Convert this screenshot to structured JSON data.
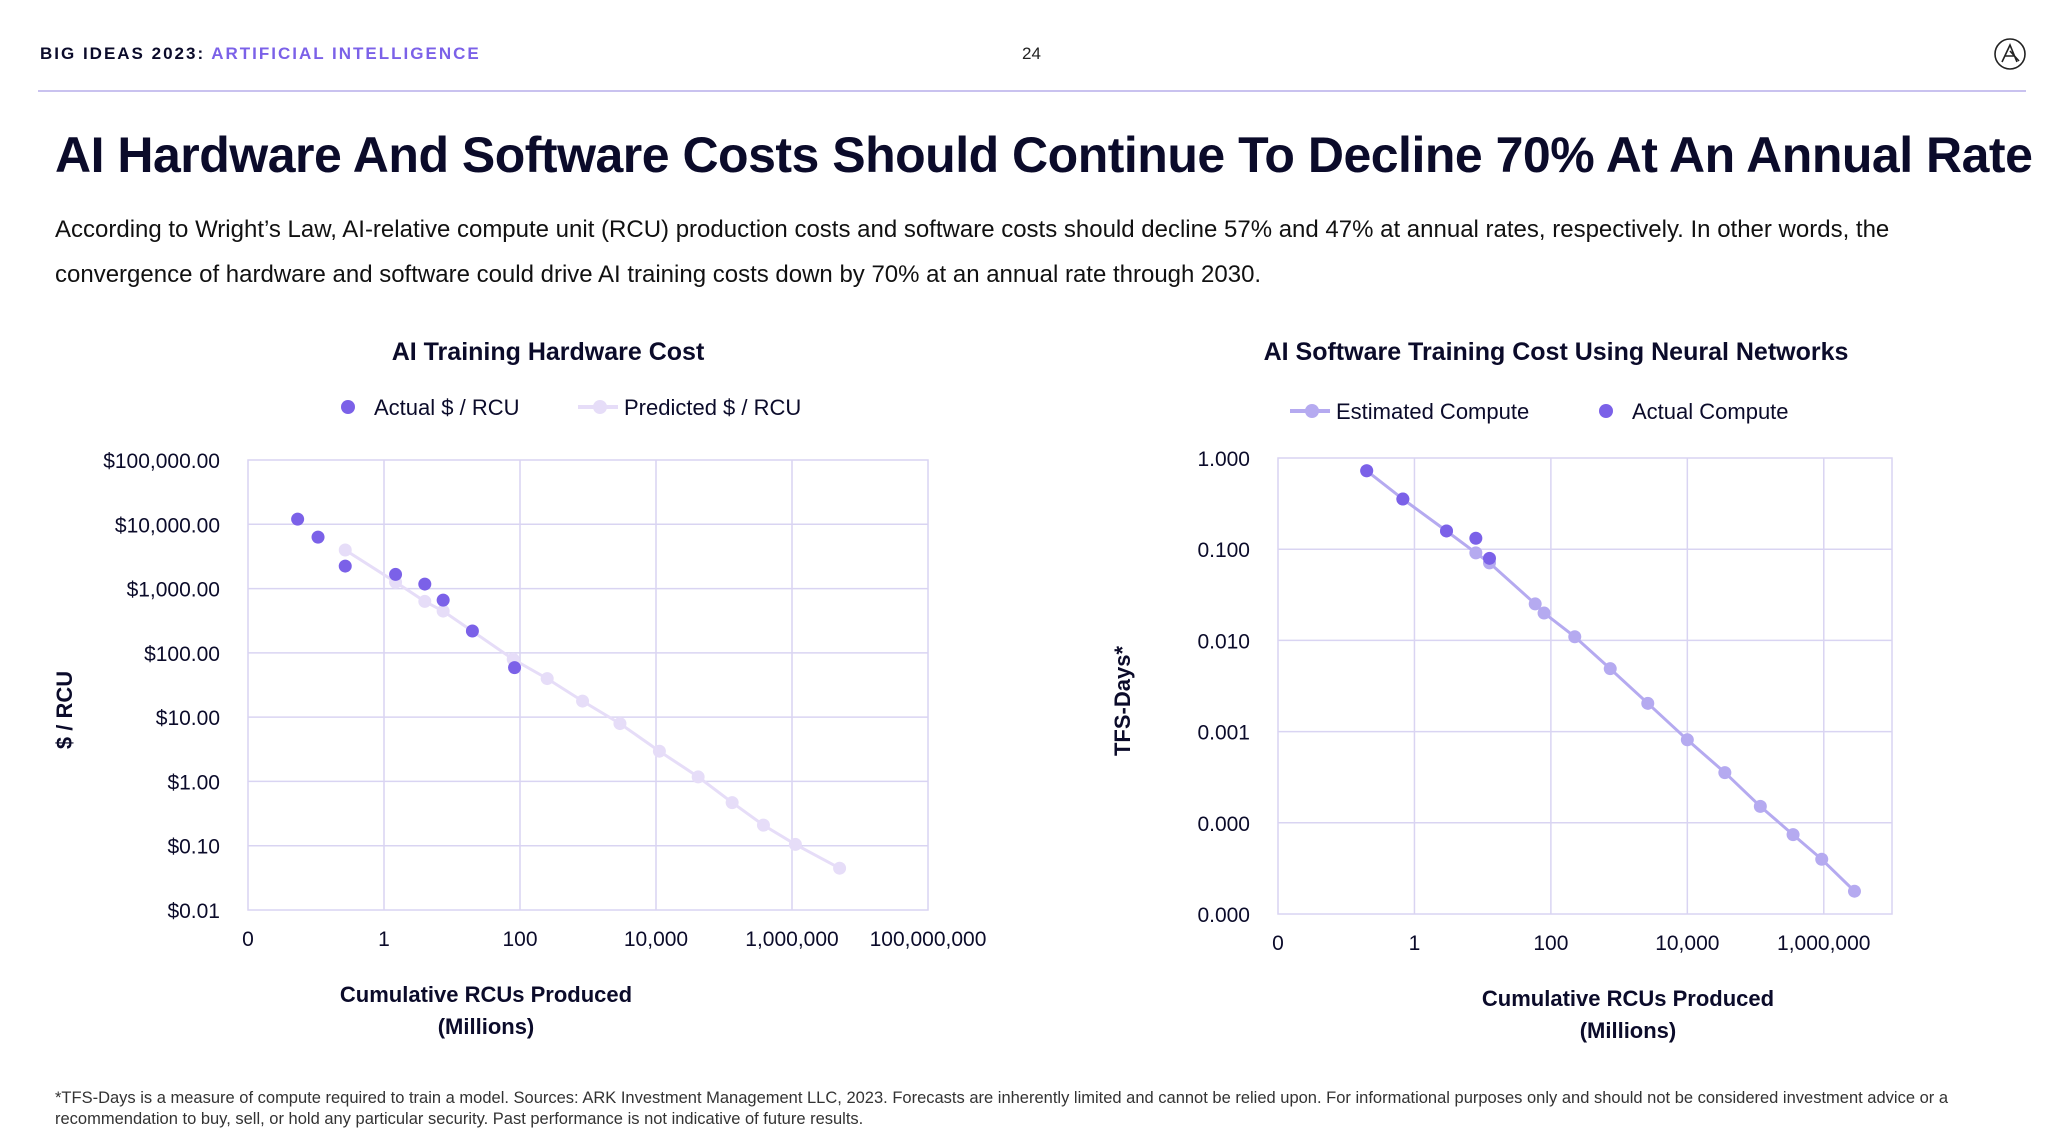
{
  "header": {
    "brand_prefix": "BIG IDEAS 2023:",
    "brand_topic": "ARTIFICIAL INTELLIGENCE",
    "page_number": "24",
    "logo_icon": "ark-logo-icon"
  },
  "title": "AI Hardware And Software Costs Should Continue To Decline 70% At An Annual Rate",
  "subtitle": "According to Wright’s Law, AI-relative compute unit (RCU) production costs and software costs should decline 57% and 47% at annual rates, respectively. In other words, the convergence of hardware and software could drive AI training costs down by 70% at an annual rate through 2030.",
  "footnote": "*TFS-Days is a measure of compute required to train a model. Sources: ARK Investment Management LLC, 2023. Forecasts are inherently limited and cannot be relied upon. For informational purposes only and should not be considered investment advice or a recommendation to buy, sell, or hold any particular security. Past performance is not indicative of future results.",
  "colors": {
    "actual": "#7b61e8",
    "predicted": "#e6ddf8",
    "estimated": "#b5aaf0",
    "grid": "#d9d4f2",
    "text": "#0b0b2a"
  },
  "chart_data": [
    {
      "type": "scatter",
      "title": "AI Training Hardware Cost",
      "xlabel": "Cumulative RCUs Produced",
      "xlabel_unit": "(Millions)",
      "ylabel": "$ / RCU",
      "x_scale": "log10",
      "y_scale": "log10",
      "xlim_log10": [
        -2,
        8
      ],
      "ylim_log10": [
        -2,
        5
      ],
      "x_tick_labels": [
        "0",
        "1",
        "100",
        "10,000",
        "1,000,000",
        "100,000,000"
      ],
      "x_tick_values_log10": [
        -2,
        0,
        2,
        4,
        6,
        8
      ],
      "y_tick_labels": [
        "$0.01",
        "$0.10",
        "$1.00",
        "$10.00",
        "$100.00",
        "$1,000.00",
        "$10,000.00",
        "$100,000.00"
      ],
      "y_tick_values_log10": [
        -2,
        -1,
        0,
        1,
        2,
        3,
        4,
        5
      ],
      "legend": [
        "Actual $ / RCU",
        "Predicted $ / RCU"
      ],
      "legend_position": "top-center",
      "grid": true,
      "series": [
        {
          "name": "Actual $ / RCU",
          "style": "markers",
          "points_log10": [
            [
              -1.27,
              4.08
            ],
            [
              -0.97,
              3.8
            ],
            [
              -0.57,
              3.35
            ],
            [
              0.17,
              3.22
            ],
            [
              0.6,
              3.07
            ],
            [
              0.87,
              2.82
            ],
            [
              1.3,
              2.34
            ],
            [
              1.92,
              1.77
            ]
          ]
        },
        {
          "name": "Predicted $ / RCU",
          "style": "line-markers",
          "points_log10": [
            [
              -0.57,
              3.6
            ],
            [
              0.17,
              3.1
            ],
            [
              0.6,
              2.8
            ],
            [
              0.87,
              2.65
            ],
            [
              1.9,
              1.9
            ],
            [
              2.4,
              1.6
            ],
            [
              2.92,
              1.25
            ],
            [
              3.47,
              0.9
            ],
            [
              4.05,
              0.47
            ],
            [
              4.62,
              0.07
            ],
            [
              5.12,
              -0.33
            ],
            [
              5.58,
              -0.68
            ],
            [
              6.05,
              -0.98
            ],
            [
              6.7,
              -1.35
            ]
          ]
        }
      ]
    },
    {
      "type": "scatter",
      "title": "AI Software Training Cost Using Neural Networks",
      "xlabel": "Cumulative RCUs Produced",
      "xlabel_unit": "(Millions)",
      "ylabel": "TFS-Days*",
      "x_scale": "log10",
      "y_scale": "log10",
      "xlim_log10": [
        -2,
        7
      ],
      "ylim_log10": [
        -5,
        0
      ],
      "x_tick_labels": [
        "0",
        "1",
        "100",
        "10,000",
        "1,000,000"
      ],
      "x_tick_values_log10": [
        -2,
        0,
        2,
        4,
        6
      ],
      "y_tick_labels": [
        "0.000",
        "0.000",
        "0.001",
        "0.010",
        "0.100",
        "1.000"
      ],
      "y_tick_values_log10": [
        -5,
        -4,
        -3,
        -2,
        -1,
        0
      ],
      "legend": [
        "Estimated Compute",
        "Actual Compute"
      ],
      "legend_position": "top-center",
      "grid": true,
      "series": [
        {
          "name": "Estimated Compute",
          "style": "line-markers",
          "points_log10": [
            [
              -0.7,
              -0.14
            ],
            [
              -0.17,
              -0.45
            ],
            [
              0.47,
              -0.8
            ],
            [
              0.9,
              -1.04
            ],
            [
              1.1,
              -1.15
            ],
            [
              1.77,
              -1.6
            ],
            [
              1.9,
              -1.7
            ],
            [
              2.35,
              -1.96
            ],
            [
              2.87,
              -2.31
            ],
            [
              3.42,
              -2.69
            ],
            [
              4.0,
              -3.09
            ],
            [
              4.55,
              -3.45
            ],
            [
              5.07,
              -3.82
            ],
            [
              5.55,
              -4.13
            ],
            [
              5.97,
              -4.4
            ],
            [
              6.45,
              -4.75
            ]
          ]
        },
        {
          "name": "Actual Compute",
          "style": "markers",
          "points_log10": [
            [
              -0.7,
              -0.14
            ],
            [
              -0.17,
              -0.45
            ],
            [
              0.47,
              -0.8
            ],
            [
              0.9,
              -0.88
            ],
            [
              1.1,
              -1.1
            ]
          ]
        }
      ]
    }
  ]
}
